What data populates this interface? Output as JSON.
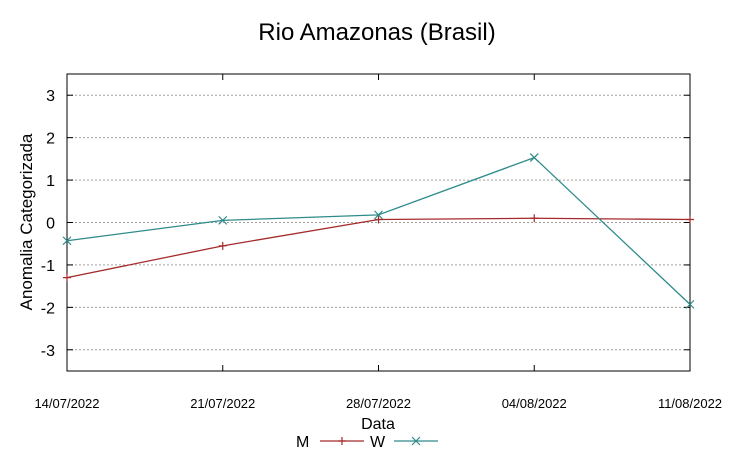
{
  "chart_data": {
    "type": "line",
    "title": "Rio Amazonas (Brasil)",
    "xlabel": "Data",
    "ylabel": "Anomalia Categorizada",
    "categories": [
      "14/07/2022",
      "21/07/2022",
      "28/07/2022",
      "04/08/2022",
      "11/08/2022"
    ],
    "ylim": [
      -3.5,
      3.5
    ],
    "yticks": [
      3,
      2,
      1,
      0,
      -1,
      -2,
      -3
    ],
    "ytick_labels": [
      "3",
      "2",
      "1",
      "0",
      "-1",
      "-2",
      "-3"
    ],
    "grid": true,
    "legend_position": "bottom-center",
    "series": [
      {
        "name": "M",
        "values": [
          -1.3,
          -0.55,
          0.07,
          0.1,
          0.07
        ],
        "color": "#a52a2a",
        "marker": "plus"
      },
      {
        "name": "W",
        "values": [
          -0.43,
          0.05,
          0.18,
          1.53,
          -1.93
        ],
        "color": "#2e8b8b",
        "marker": "cross"
      }
    ]
  }
}
